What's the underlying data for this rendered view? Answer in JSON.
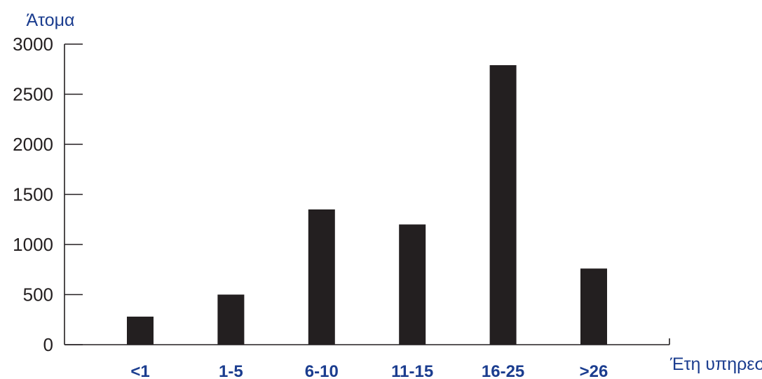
{
  "chart_data": {
    "type": "bar",
    "title": "",
    "ylabel": "Άτομα",
    "xlabel": "Έτη υπηρεσίας",
    "categories": [
      "<1",
      "1-5",
      "6-10",
      "11-15",
      "16-25",
      ">26"
    ],
    "values": [
      280,
      500,
      1350,
      1200,
      2790,
      760
    ],
    "ylim": [
      0,
      3000
    ],
    "yticks": [
      "0",
      "500",
      "1000",
      "1500",
      "2000",
      "2500",
      "3000"
    ],
    "grid": false,
    "legend": "none",
    "colors": {
      "bar": "#231f20",
      "axis": "#231f20",
      "label_blue": "#1b3d8f",
      "tick_text": "#231f20"
    }
  }
}
